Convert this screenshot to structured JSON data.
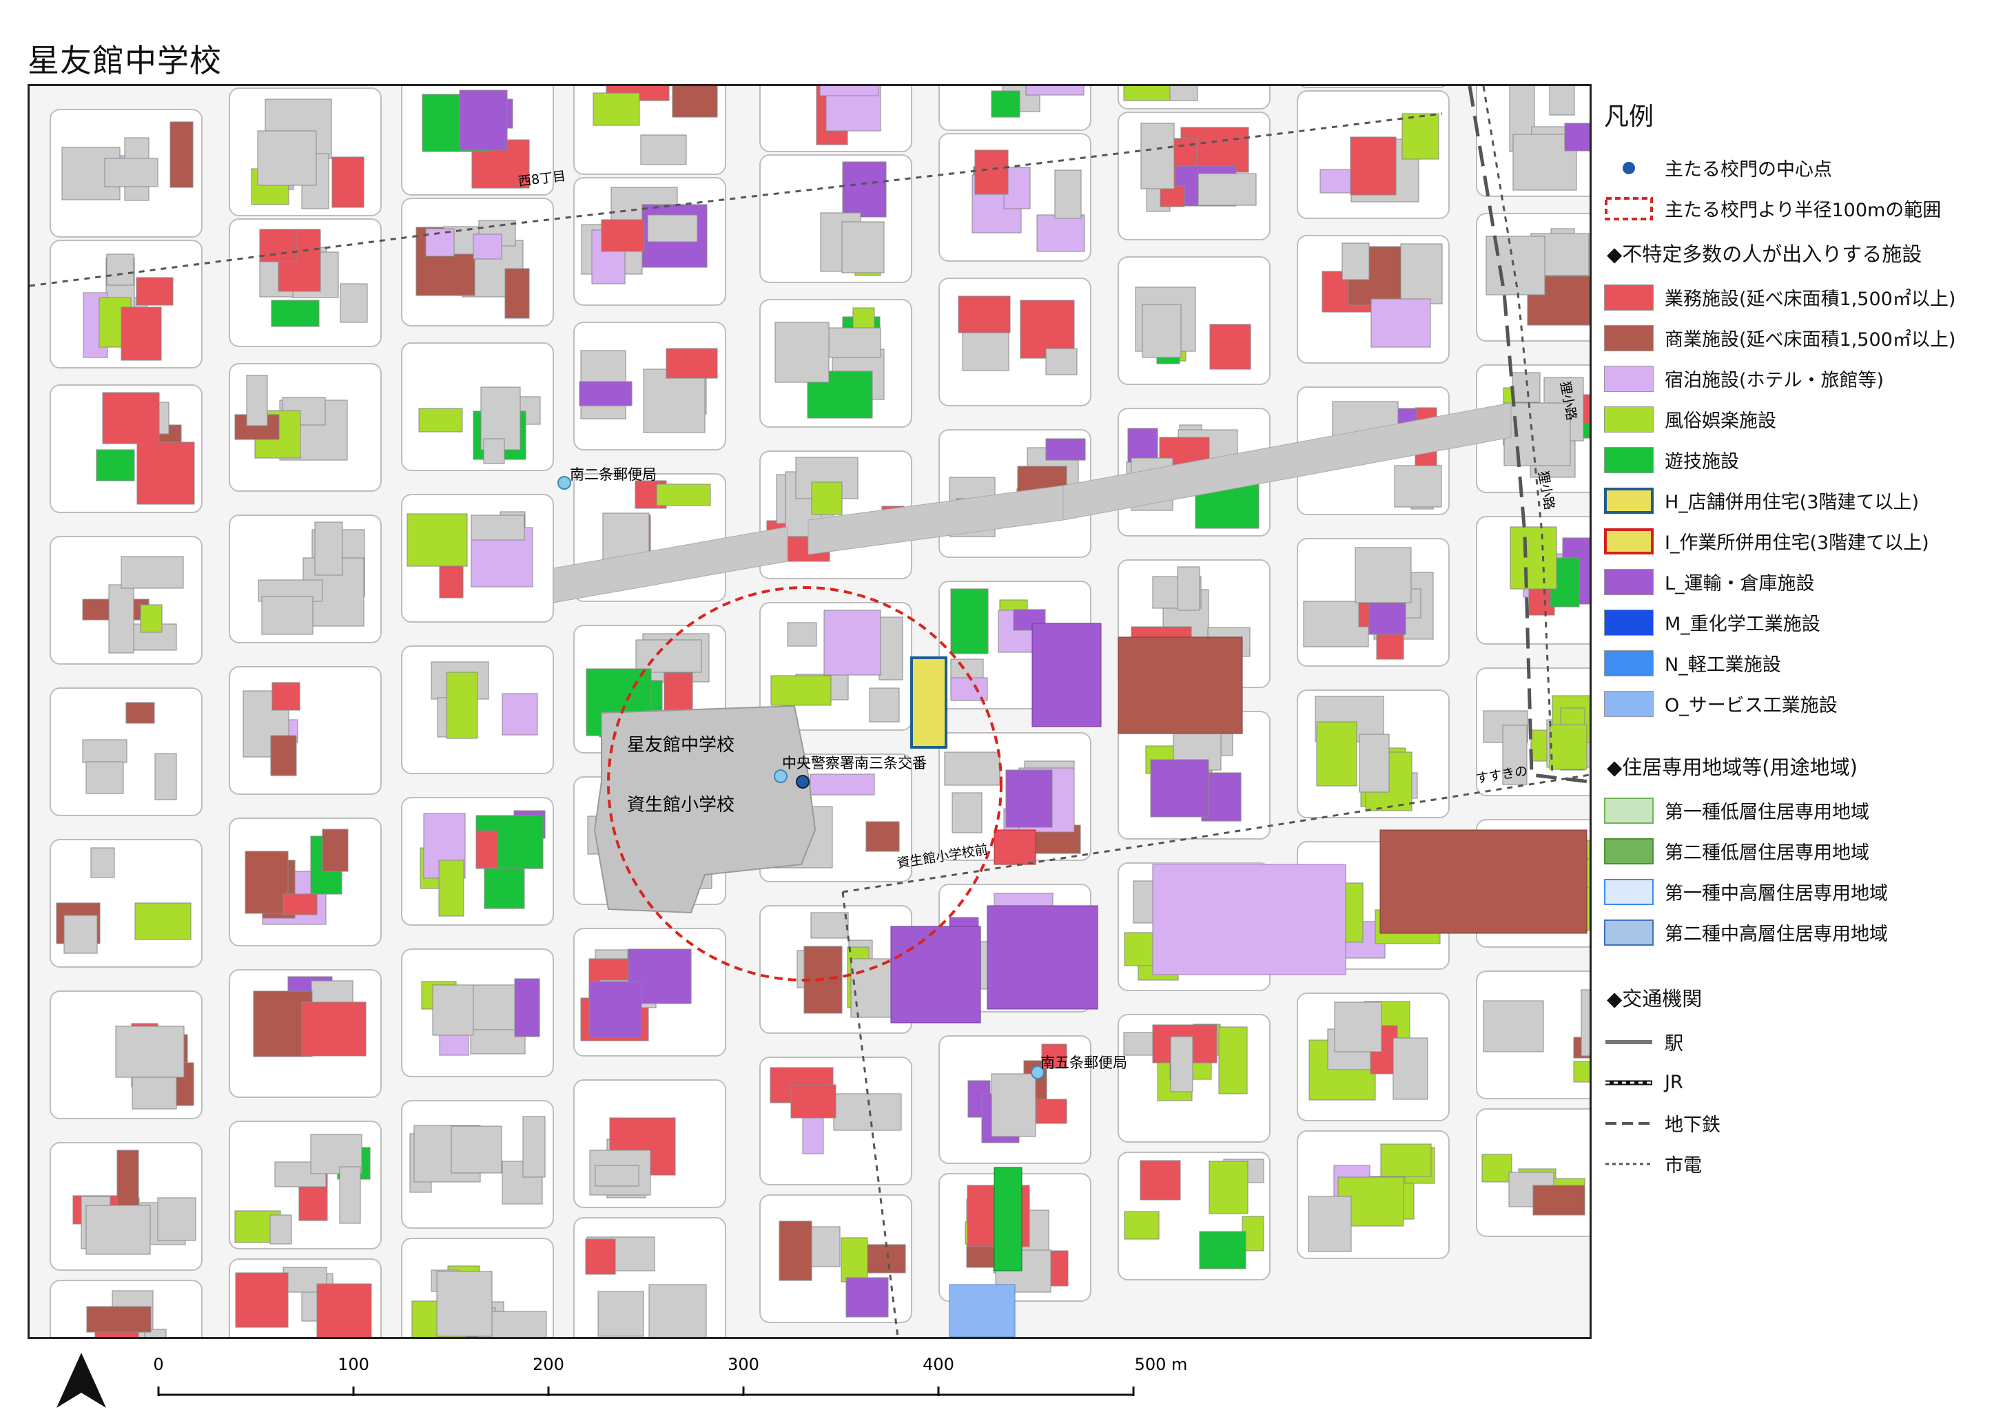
{
  "title": "星友館中学校",
  "colors": {
    "office": "#e8525a",
    "commercial": "#b05a4f",
    "lodging": "#d7b0f2",
    "entertainment": "#aadc2c",
    "amusement": "#19c23a",
    "shop_house_fill": "#e8e05a",
    "shop_house_edge": "#1f5d8f",
    "work_house_edge": "#d52020",
    "transport": "#a05ad2",
    "heavy_industry": "#1a4fe6",
    "light_industry": "#3d8df2",
    "service_industry": "#8db7f4",
    "low1": "#c9e5c0",
    "low2": "#73b35a",
    "mid1": "#dbe9fb",
    "mid2": "#a8c4e6",
    "building": "#cccccc",
    "road_gray": "#c8c8c8",
    "radius": "#d9251e",
    "gate": "#1f5aa8",
    "post": "#8ac8ee"
  },
  "map": {
    "school_labels": [
      "星友館中学校",
      "資生館小学校"
    ],
    "poi_labels": [
      "南二条郵便局",
      "中央警察署南三条交番",
      "南五条郵便局"
    ],
    "street_labels": [
      "西8丁目",
      "すすきの",
      "資生館小学校前",
      "狸小路",
      "狸小路"
    ]
  },
  "legend": {
    "heading": "凡例",
    "items_top": [
      {
        "label": "主たる校門の中心点",
        "icon": "gate-point"
      },
      {
        "label": "主たる校門より半径100mの範囲",
        "icon": "radius-dashed-box"
      }
    ],
    "section_facilities": "◆不特定多数の人が出入りする施設",
    "facilities": [
      {
        "label": "業務施設(延べ床面積1,500㎡以上)",
        "color": "#e8525a"
      },
      {
        "label": "商業施設(延べ床面積1,500㎡以上)",
        "color": "#b05a4f"
      },
      {
        "label": "宿泊施設(ホテル・旅館等)",
        "color": "#d7b0f2"
      },
      {
        "label": "風俗娯楽施設",
        "color": "#aadc2c"
      },
      {
        "label": "遊技施設",
        "color": "#19c23a"
      },
      {
        "label": "H_店舗併用住宅(3階建て以上)",
        "color": "#e8e05a",
        "edge": "#1f5d8f"
      },
      {
        "label": "I_作業所併用住宅(3階建て以上)",
        "color": "#e8e05a",
        "edge": "#d52020"
      },
      {
        "label": "L_運輸・倉庫施設",
        "color": "#a05ad2"
      },
      {
        "label": "M_重化学工業施設",
        "color": "#1a4fe6"
      },
      {
        "label": "N_軽工業施設",
        "color": "#3d8df2"
      },
      {
        "label": "O_サービス工業施設",
        "color": "#8db7f4"
      }
    ],
    "section_zoning": "◆住居専用地域等(用途地域)",
    "zoning": [
      {
        "label": "第一種低層住居専用地域",
        "color": "#c9e5c0",
        "edge": "#73b35a"
      },
      {
        "label": "第二種低層住居専用地域",
        "color": "#73b35a",
        "edge": "#4f8f3b"
      },
      {
        "label": "第一種中高層住居専用地域",
        "color": "#dbe9fb",
        "edge": "#3d8df2"
      },
      {
        "label": "第二種中高層住居専用地域",
        "color": "#a8c4e6",
        "edge": "#3d72c0"
      }
    ],
    "section_transit": "◆交通機関",
    "transit": [
      {
        "label": "駅",
        "icon": "station-line"
      },
      {
        "label": "JR",
        "icon": "jr-line"
      },
      {
        "label": "地下鉄",
        "icon": "subway-line"
      },
      {
        "label": "市電",
        "icon": "tram-line"
      }
    ]
  },
  "scale": {
    "ticks": [
      "0",
      "100",
      "200",
      "300",
      "400",
      "500 m"
    ]
  }
}
